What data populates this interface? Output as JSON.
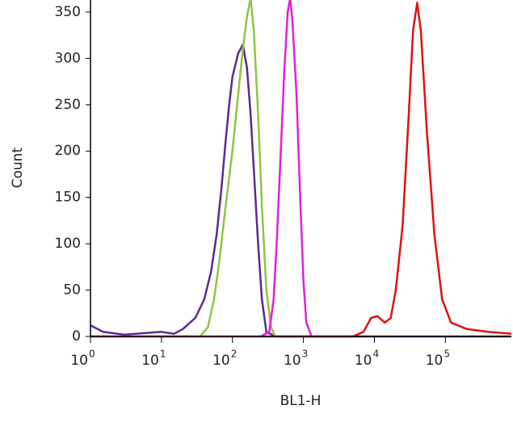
{
  "chart_data": {
    "type": "line",
    "x_label": "BL1-H",
    "y_label": "Count",
    "x_log": true,
    "xlim": [
      1,
      850000
    ],
    "ylim": [
      0,
      363
    ],
    "xticks": [
      {
        "value": 1,
        "label": "10",
        "sup": "0"
      },
      {
        "value": 10,
        "label": "10",
        "sup": "1"
      },
      {
        "value": 100,
        "label": "10",
        "sup": "2"
      },
      {
        "value": 1000,
        "label": "10",
        "sup": "3"
      },
      {
        "value": 10000,
        "label": "10",
        "sup": "4"
      },
      {
        "value": 100000,
        "label": "10",
        "sup": "5"
      }
    ],
    "yticks": [
      0,
      50,
      100,
      150,
      200,
      250,
      300,
      350
    ],
    "series": [
      {
        "color": "#5b2a91",
        "x": [
          1,
          1.5,
          3,
          10,
          15,
          20,
          30,
          40,
          50,
          60,
          70,
          80,
          90,
          100,
          120,
          140,
          160,
          180,
          200,
          230,
          260,
          300,
          400,
          850000
        ],
        "values": [
          12,
          5,
          2,
          5,
          3,
          8,
          20,
          40,
          70,
          110,
          160,
          210,
          250,
          280,
          305,
          315,
          290,
          240,
          180,
          100,
          40,
          5,
          0,
          0
        ]
      },
      {
        "color": "#8dc63f",
        "x": [
          1,
          35,
          45,
          55,
          65,
          80,
          100,
          120,
          140,
          160,
          180,
          200,
          230,
          260,
          300,
          350,
          400
        ],
        "values": [
          0,
          0,
          10,
          40,
          80,
          140,
          200,
          260,
          310,
          345,
          365,
          330,
          240,
          140,
          50,
          10,
          0
        ]
      },
      {
        "color": "#e020d8",
        "x": [
          250,
          330,
          380,
          420,
          480,
          540,
          600,
          650,
          700,
          800,
          900,
          1000,
          1100,
          1300
        ],
        "values": [
          0,
          5,
          40,
          100,
          200,
          290,
          350,
          365,
          340,
          260,
          150,
          60,
          15,
          0
        ]
      },
      {
        "color": "#e01010",
        "x": [
          1,
          5000,
          7000,
          9000,
          11000,
          14000,
          17000,
          20000,
          25000,
          30000,
          35000,
          40000,
          45000,
          55000,
          70000,
          90000,
          120000,
          200000,
          400000,
          850000
        ],
        "values": [
          0,
          0,
          5,
          20,
          22,
          15,
          20,
          50,
          120,
          230,
          330,
          360,
          330,
          220,
          110,
          40,
          15,
          8,
          5,
          3
        ]
      }
    ]
  }
}
